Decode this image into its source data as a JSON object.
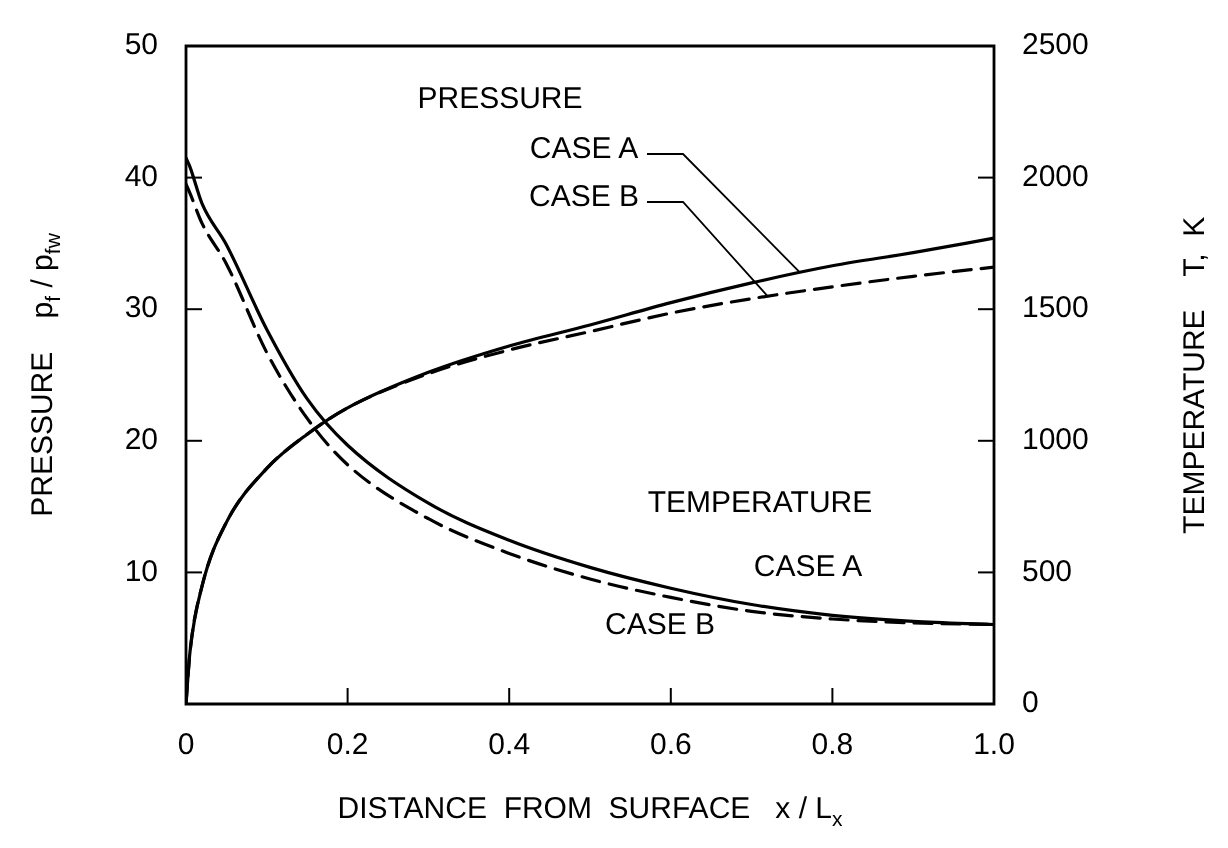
{
  "chart_data": {
    "type": "line",
    "xlabel": "DISTANCE  FROM  SURFACE   x / L$_{x}$",
    "ylabel": "PRESSURE    p$_{f}$ / p$_{fw}$",
    "y2label": "TEMPERATURE    T,  K",
    "annotations": [
      "PRESSURE",
      "TEMPERATURE"
    ],
    "x": [
      0,
      0.005,
      0.02,
      0.05,
      0.1,
      0.15,
      0.2,
      0.3,
      0.4,
      0.5,
      0.6,
      0.7,
      0.8,
      0.9,
      1.0
    ],
    "series": [
      {
        "name": "CASE A",
        "color": "#000000",
        "line_style": "solid",
        "values": [
          0,
          4,
          9,
          13.8,
          17.9,
          20.5,
          22.5,
          25.2,
          27.2,
          28.8,
          30.5,
          32,
          33.3,
          34.3,
          35.4
        ]
      },
      {
        "name": "CASE B",
        "color": "#000000",
        "line_style": "dashed",
        "values": [
          0,
          4,
          9,
          13.8,
          17.9,
          20.5,
          22.5,
          25.1,
          26.9,
          28.3,
          29.7,
          30.8,
          31.7,
          32.5,
          33.2
        ]
      },
      {
        "name": "CASE A",
        "color": "#000000",
        "line_style": "solid",
        "axis": "y2",
        "values": [
          2075,
          2040,
          1900,
          1745,
          1423,
          1159,
          983,
          763,
          622,
          519,
          440,
          378,
          337,
          314,
          302
        ]
      },
      {
        "name": "CASE B",
        "color": "#000000",
        "line_style": "dashed",
        "axis": "y2",
        "values": [
          1975,
          1940,
          1825,
          1672,
          1335,
          1085,
          909,
          704,
          572,
          475,
          405,
          352,
          323,
          308,
          302
        ]
      }
    ],
    "xlim": [
      0,
      1
    ],
    "xticks": [
      0,
      0.2,
      0.4,
      0.6,
      0.8,
      {
        "value": 1,
        "label": "1.0"
      }
    ],
    "ylim": [
      0,
      50
    ],
    "yticks": [
      10,
      20,
      30,
      40,
      50
    ],
    "y2lim": [
      0,
      2500
    ],
    "y2ticks": [
      0,
      500,
      1000,
      1500,
      2000,
      2500
    ],
    "grid": false,
    "legend": false,
    "marker": "none"
  }
}
